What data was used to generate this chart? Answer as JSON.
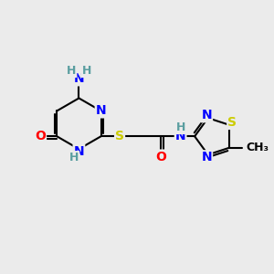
{
  "bg_color": "#ebebeb",
  "atom_colors": {
    "C": "#000000",
    "N": "#0000ff",
    "O": "#ff0000",
    "S": "#cccc00",
    "H": "#5a9ea0"
  },
  "bond_color": "#000000",
  "bond_width": 1.5,
  "font_size": 10,
  "fig_size": [
    3.0,
    3.0
  ],
  "dpi": 100
}
